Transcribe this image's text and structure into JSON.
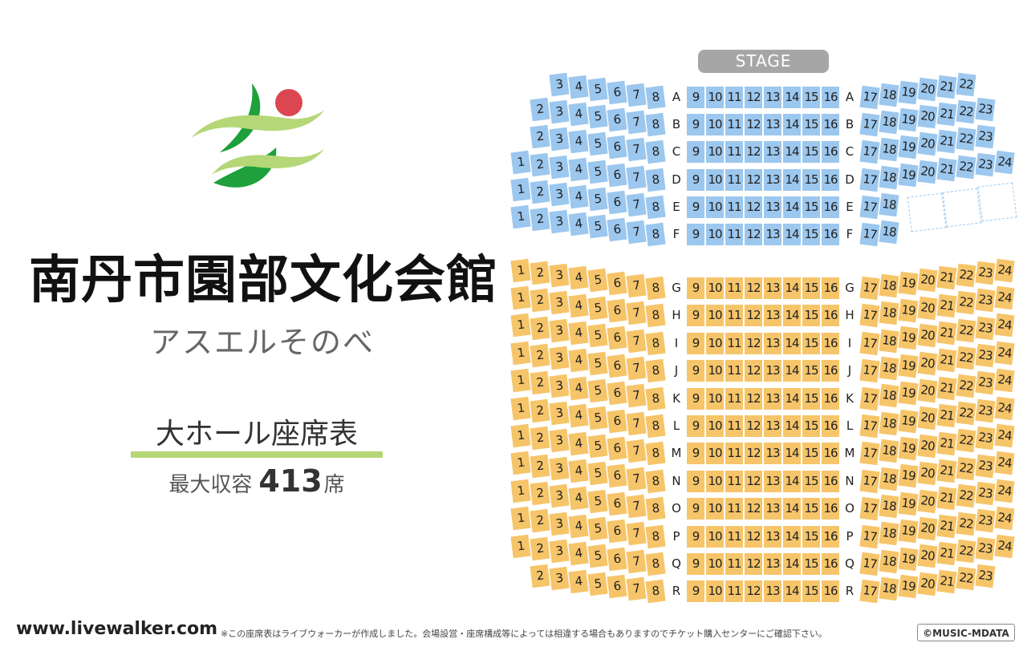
{
  "venue": {
    "name": "南丹市園部文化会館",
    "subtitle": "アスエルそのべ"
  },
  "hall": {
    "name": "大ホール座席表",
    "capacity_label": "最大収容",
    "capacity_value": "413",
    "capacity_unit": "席"
  },
  "footer": {
    "site": "www.livewalker.com",
    "disclaimer": "※この座席表はライブウォーカーが作成しました。会場設営・座席構成等によっては相違する場合もありますのでチケット購入センターにご確認下さい。",
    "copyright": "©MUSIC-MDATA"
  },
  "stage_label": "STAGE",
  "colors": {
    "front_block": "#9cc7ee",
    "rear_block": "#f6c56a",
    "stage": "#a6a6a6",
    "logo_green_dark": "#1ea03c",
    "logo_green_light": "#b5d777",
    "logo_red": "#dc4650",
    "underline": "#b5d777"
  },
  "seating": {
    "front_rows": [
      {
        "row": "A",
        "left": [
          3,
          4,
          5,
          6,
          7,
          8
        ],
        "center": [
          9,
          10,
          11,
          12,
          13,
          14,
          15,
          16
        ],
        "right": [
          17,
          18,
          19,
          20,
          21,
          22
        ]
      },
      {
        "row": "B",
        "left": [
          2,
          3,
          4,
          5,
          6,
          7,
          8
        ],
        "center": [
          9,
          10,
          11,
          12,
          13,
          14,
          15,
          16
        ],
        "right": [
          17,
          18,
          19,
          20,
          21,
          22,
          23
        ]
      },
      {
        "row": "C",
        "left": [
          2,
          3,
          4,
          5,
          6,
          7,
          8
        ],
        "center": [
          9,
          10,
          11,
          12,
          13,
          14,
          15,
          16
        ],
        "right": [
          17,
          18,
          19,
          20,
          21,
          22,
          23
        ]
      },
      {
        "row": "D",
        "left": [
          1,
          2,
          3,
          4,
          5,
          6,
          7,
          8
        ],
        "center": [
          9,
          10,
          11,
          12,
          13,
          14,
          15,
          16
        ],
        "right": [
          17,
          18,
          19,
          20,
          21,
          22,
          23,
          24
        ]
      },
      {
        "row": "E",
        "left": [
          1,
          2,
          3,
          4,
          5,
          6,
          7,
          8
        ],
        "center": [
          9,
          10,
          11,
          12,
          13,
          14,
          15,
          16
        ],
        "right": [
          17,
          18
        ]
      },
      {
        "row": "F",
        "left": [
          1,
          2,
          3,
          4,
          5,
          6,
          7,
          8
        ],
        "center": [
          9,
          10,
          11,
          12,
          13,
          14,
          15,
          16
        ],
        "right": [
          17,
          18
        ]
      }
    ],
    "rear_rows": [
      {
        "row": "G",
        "left": [
          1,
          2,
          3,
          4,
          5,
          6,
          7,
          8
        ],
        "center": [
          9,
          10,
          11,
          12,
          13,
          14,
          15,
          16
        ],
        "right": [
          17,
          18,
          19,
          20,
          21,
          22,
          23,
          24
        ]
      },
      {
        "row": "H",
        "left": [
          1,
          2,
          3,
          4,
          5,
          6,
          7,
          8
        ],
        "center": [
          9,
          10,
          11,
          12,
          13,
          14,
          15,
          16
        ],
        "right": [
          17,
          18,
          19,
          20,
          21,
          22,
          23,
          24
        ]
      },
      {
        "row": "I",
        "left": [
          1,
          2,
          3,
          4,
          5,
          6,
          7,
          8
        ],
        "center": [
          9,
          10,
          11,
          12,
          13,
          14,
          15,
          16
        ],
        "right": [
          17,
          18,
          19,
          20,
          21,
          22,
          23,
          24
        ]
      },
      {
        "row": "J",
        "left": [
          1,
          2,
          3,
          4,
          5,
          6,
          7,
          8
        ],
        "center": [
          9,
          10,
          11,
          12,
          13,
          14,
          15,
          16
        ],
        "right": [
          17,
          18,
          19,
          20,
          21,
          22,
          23,
          24
        ]
      },
      {
        "row": "K",
        "left": [
          1,
          2,
          3,
          4,
          5,
          6,
          7,
          8
        ],
        "center": [
          9,
          10,
          11,
          12,
          13,
          14,
          15,
          16
        ],
        "right": [
          17,
          18,
          19,
          20,
          21,
          22,
          23,
          24
        ]
      },
      {
        "row": "L",
        "left": [
          1,
          2,
          3,
          4,
          5,
          6,
          7,
          8
        ],
        "center": [
          9,
          10,
          11,
          12,
          13,
          14,
          15,
          16
        ],
        "right": [
          17,
          18,
          19,
          20,
          21,
          22,
          23,
          24
        ]
      },
      {
        "row": "M",
        "left": [
          1,
          2,
          3,
          4,
          5,
          6,
          7,
          8
        ],
        "center": [
          9,
          10,
          11,
          12,
          13,
          14,
          15,
          16
        ],
        "right": [
          17,
          18,
          19,
          20,
          21,
          22,
          23,
          24
        ]
      },
      {
        "row": "N",
        "left": [
          1,
          2,
          3,
          4,
          5,
          6,
          7,
          8
        ],
        "center": [
          9,
          10,
          11,
          12,
          13,
          14,
          15,
          16
        ],
        "right": [
          17,
          18,
          19,
          20,
          21,
          22,
          23,
          24
        ]
      },
      {
        "row": "O",
        "left": [
          1,
          2,
          3,
          4,
          5,
          6,
          7,
          8
        ],
        "center": [
          9,
          10,
          11,
          12,
          13,
          14,
          15,
          16
        ],
        "right": [
          17,
          18,
          19,
          20,
          21,
          22,
          23,
          24
        ]
      },
      {
        "row": "P",
        "left": [
          1,
          2,
          3,
          4,
          5,
          6,
          7,
          8
        ],
        "center": [
          9,
          10,
          11,
          12,
          13,
          14,
          15,
          16
        ],
        "right": [
          17,
          18,
          19,
          20,
          21,
          22,
          23,
          24
        ]
      },
      {
        "row": "Q",
        "left": [
          1,
          2,
          3,
          4,
          5,
          6,
          7,
          8
        ],
        "center": [
          9,
          10,
          11,
          12,
          13,
          14,
          15,
          16
        ],
        "right": [
          17,
          18,
          19,
          20,
          21,
          22,
          23,
          24
        ]
      },
      {
        "row": "R",
        "left": [
          2,
          3,
          4,
          5,
          6,
          7,
          8
        ],
        "center": [
          9,
          10,
          11,
          12,
          13,
          14,
          15,
          16
        ],
        "right": [
          17,
          18,
          19,
          20,
          21,
          22,
          23
        ]
      }
    ]
  }
}
